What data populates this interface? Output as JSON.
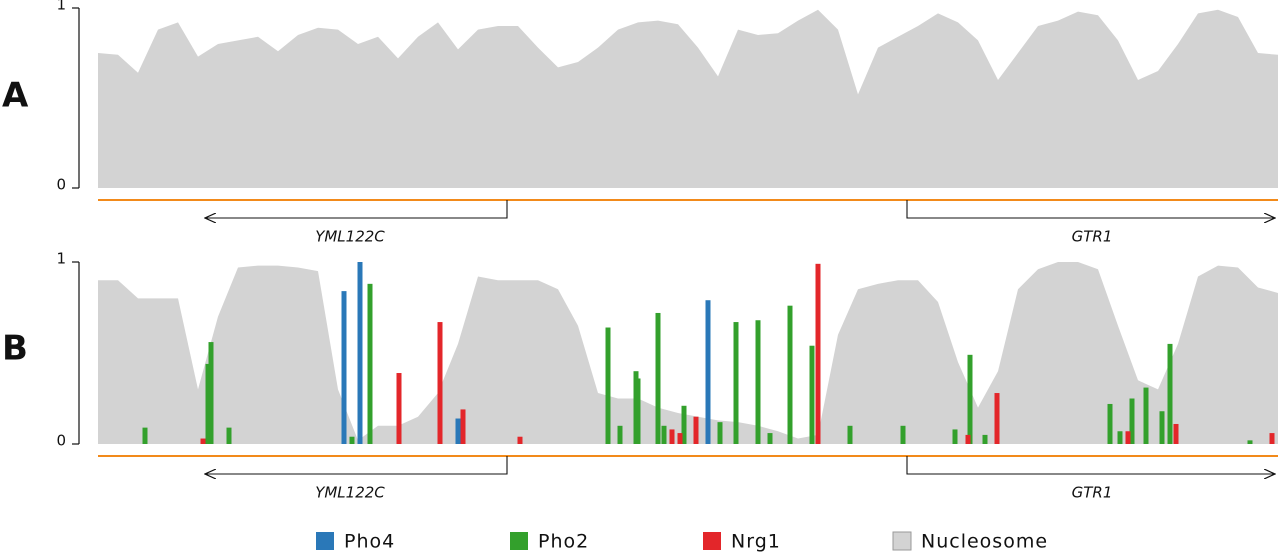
{
  "chart_data": [
    {
      "type": "area",
      "label": "A",
      "x": [
        0,
        20,
        40,
        60,
        80,
        100,
        120,
        140,
        160,
        180,
        200,
        220,
        240,
        260,
        280,
        300,
        320,
        340,
        360,
        380,
        400,
        420,
        440,
        460,
        480,
        500,
        520,
        540,
        560,
        580,
        600,
        620,
        640,
        660,
        680,
        700,
        720,
        740,
        760,
        780,
        800,
        820,
        840,
        860,
        880,
        900,
        920,
        940,
        960,
        980,
        1000,
        1020,
        1040,
        1060,
        1080,
        1100,
        1120,
        1140,
        1160,
        1180
      ],
      "xlim": [
        0,
        1180
      ],
      "series": [
        {
          "color": "#d3d3d3",
          "values": [
            0.75,
            0.74,
            0.64,
            0.88,
            0.92,
            0.73,
            0.8,
            0.82,
            0.84,
            0.76,
            0.85,
            0.89,
            0.88,
            0.8,
            0.84,
            0.72,
            0.84,
            0.92,
            0.77,
            0.88,
            0.9,
            0.9,
            0.78,
            0.67,
            0.7,
            0.78,
            0.88,
            0.92,
            0.93,
            0.91,
            0.78,
            0.62,
            0.88,
            0.85,
            0.86,
            0.93,
            0.99,
            0.88,
            0.52,
            0.78,
            0.84,
            0.9,
            0.97,
            0.92,
            0.82,
            0.6,
            0.75,
            0.9,
            0.93,
            0.98,
            0.96,
            0.82,
            0.6,
            0.65,
            0.8,
            0.97,
            0.99,
            0.95,
            0.75,
            0.74
          ]
        }
      ],
      "ylim": [
        0,
        1
      ],
      "yticks": [
        0,
        1
      ],
      "genes": [
        {
          "name": "YML122C"
        },
        {
          "name": "GTR1"
        }
      ]
    },
    {
      "type": "bar",
      "label": "B",
      "x": [
        0,
        20,
        40,
        60,
        80,
        100,
        120,
        140,
        160,
        180,
        200,
        220,
        240,
        260,
        280,
        300,
        320,
        340,
        360,
        380,
        400,
        420,
        440,
        460,
        480,
        500,
        520,
        540,
        560,
        580,
        600,
        620,
        640,
        660,
        680,
        700,
        720,
        740,
        760,
        780,
        800,
        820,
        840,
        860,
        880,
        900,
        920,
        940,
        960,
        980,
        1000,
        1020,
        1040,
        1060,
        1080,
        1100,
        1120,
        1140,
        1160,
        1180
      ],
      "xlim": [
        0,
        1180
      ],
      "series": [
        {
          "name": "Pho4",
          "color": "#2a78b8",
          "x": [
            246,
            262,
            360,
            610
          ],
          "values": [
            0.84,
            1.0,
            0.14,
            0.79
          ]
        },
        {
          "name": "Pho2",
          "color": "#33a02c",
          "x": [
            47,
            110,
            113,
            131,
            254,
            272,
            510,
            522,
            538,
            540,
            560,
            566,
            586,
            622,
            638,
            660,
            672,
            692,
            714,
            752,
            805,
            857,
            872,
            887,
            1012,
            1022,
            1034,
            1048,
            1064,
            1072,
            1152
          ],
          "values": [
            0.09,
            0.44,
            0.56,
            0.09,
            0.04,
            0.88,
            0.64,
            0.1,
            0.4,
            0.36,
            0.72,
            0.1,
            0.21,
            0.12,
            0.67,
            0.68,
            0.06,
            0.76,
            0.54,
            0.1,
            0.1,
            0.08,
            0.49,
            0.05,
            0.22,
            0.07,
            0.25,
            0.31,
            0.18,
            0.55,
            0.02
          ]
        },
        {
          "name": "Nrg1",
          "color": "#e3262a",
          "x": [
            105,
            301,
            342,
            365,
            422,
            574,
            582,
            598,
            720,
            870,
            899,
            1030,
            1078,
            1174
          ],
          "values": [
            0.03,
            0.39,
            0.67,
            0.19,
            0.04,
            0.08,
            0.06,
            0.15,
            0.99,
            0.05,
            0.28,
            0.07,
            0.11,
            0.06
          ]
        },
        {
          "name": "Nucleosome",
          "type": "area",
          "color": "#d3d3d3",
          "values": [
            0.9,
            0.9,
            0.8,
            0.8,
            0.8,
            0.3,
            0.7,
            0.97,
            0.98,
            0.98,
            0.97,
            0.95,
            0.3,
            0.02,
            0.1,
            0.1,
            0.15,
            0.28,
            0.55,
            0.92,
            0.9,
            0.9,
            0.9,
            0.85,
            0.65,
            0.28,
            0.25,
            0.25,
            0.2,
            0.17,
            0.15,
            0.13,
            0.12,
            0.1,
            0.07,
            0.03,
            0.05,
            0.6,
            0.85,
            0.88,
            0.9,
            0.9,
            0.78,
            0.45,
            0.2,
            0.4,
            0.85,
            0.96,
            1.0,
            1.0,
            0.96,
            0.65,
            0.35,
            0.3,
            0.55,
            0.92,
            0.98,
            0.97,
            0.86,
            0.83
          ]
        }
      ],
      "ylim": [
        0,
        1
      ],
      "yticks": [
        0,
        1
      ],
      "genes": [
        {
          "name": "YML122C"
        },
        {
          "name": "GTR1"
        }
      ]
    }
  ]
}
